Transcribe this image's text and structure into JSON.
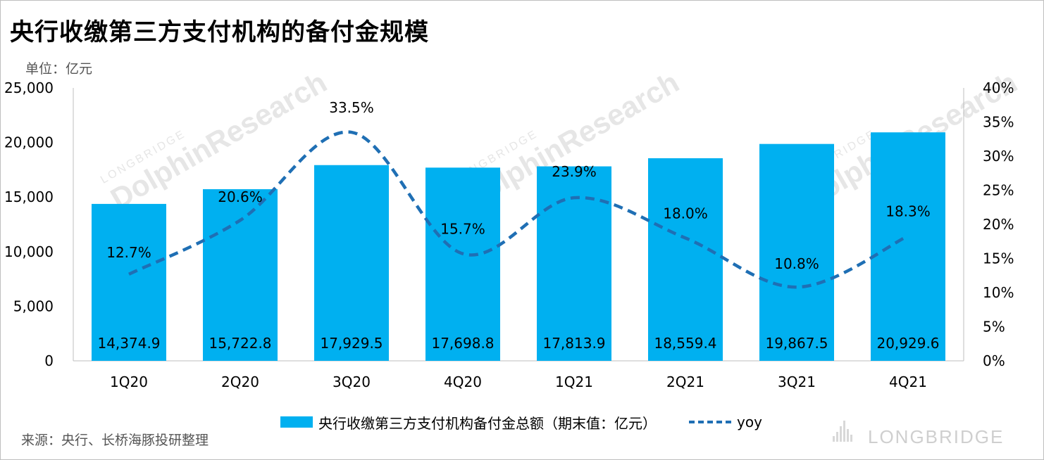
{
  "title": "央行收缴第三方支付机构的备付金规模",
  "unit_label": "单位：亿元",
  "source": "来源：央行、长桥海豚投研整理",
  "watermark": {
    "brand": "LONGBRIDGE",
    "text": "DolphinResearch",
    "sub": "LONGBRIDGE"
  },
  "colors": {
    "bar": "#00B0F0",
    "line": "#1F6FB4",
    "axis": "#bfbfbf"
  },
  "chart_data": {
    "type": "bar",
    "categories": [
      "1Q20",
      "2Q20",
      "3Q20",
      "4Q20",
      "1Q21",
      "2Q21",
      "3Q21",
      "4Q21"
    ],
    "series": [
      {
        "name": "央行收缴第三方支付机构备付金总额（期末值：亿元）",
        "type": "bar",
        "axis": "left",
        "values": [
          14374.9,
          15722.8,
          17929.5,
          17698.8,
          17813.9,
          18559.4,
          19867.5,
          20929.6
        ],
        "labels": [
          "14,374.9",
          "15,722.8",
          "17,929.5",
          "17,698.8",
          "17,813.9",
          "18,559.4",
          "19,867.5",
          "20,929.6"
        ]
      },
      {
        "name": "yoy",
        "type": "line",
        "style": "dashed-smooth",
        "axis": "right",
        "values": [
          12.7,
          20.6,
          33.5,
          15.7,
          23.9,
          18.0,
          10.8,
          18.3
        ],
        "labels": [
          "12.7%",
          "20.6%",
          "33.5%",
          "15.7%",
          "23.9%",
          "18.0%",
          "10.8%",
          "18.3%"
        ]
      }
    ],
    "y_left": {
      "min": 0,
      "max": 25000,
      "ticks": [
        "0",
        "5,000",
        "10,000",
        "15,000",
        "20,000",
        "25,000"
      ]
    },
    "y_right": {
      "min": 0,
      "max": 40,
      "ticks": [
        "0%",
        "5%",
        "10%",
        "15%",
        "20%",
        "25%",
        "30%",
        "35%",
        "40%"
      ]
    },
    "grid": false,
    "legend": "bottom"
  }
}
